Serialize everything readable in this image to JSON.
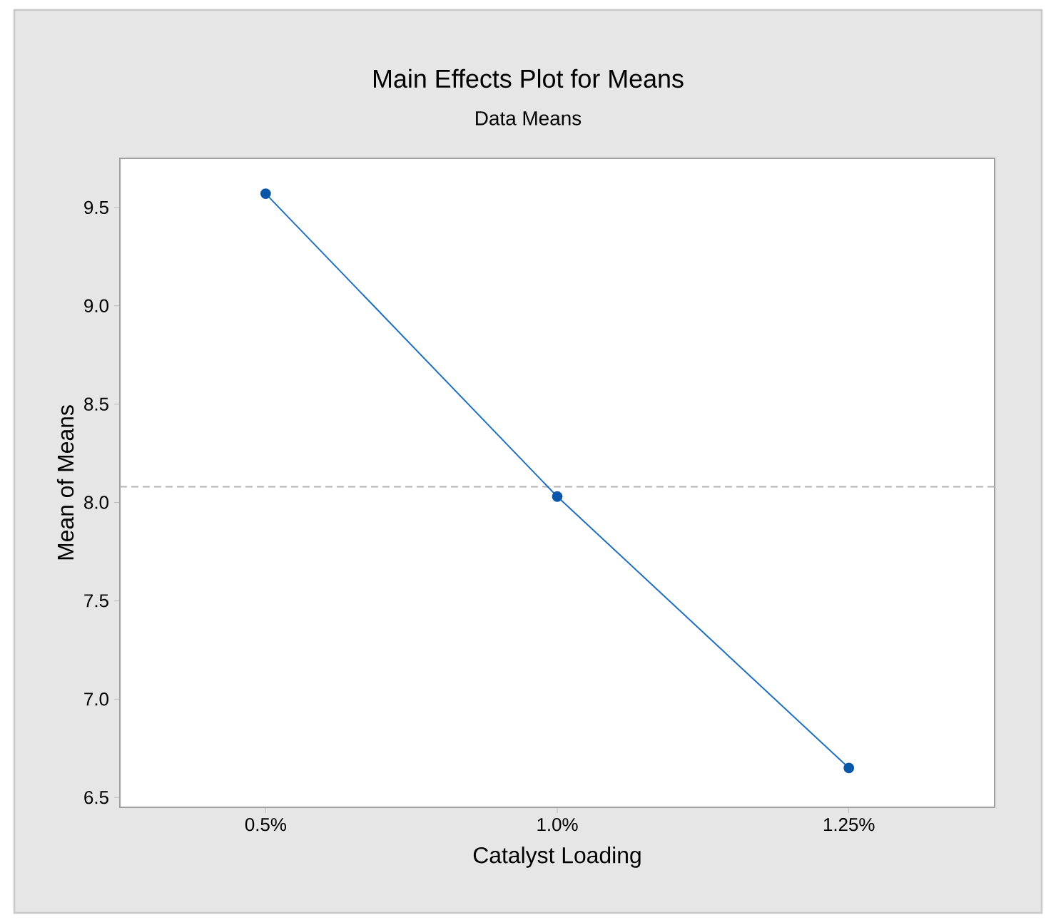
{
  "chart_data": {
    "type": "line",
    "title": "Main Effects Plot for Means",
    "subtitle": "Data Means",
    "xlabel": "Catalyst Loading",
    "ylabel": "Mean of Means",
    "categories": [
      "0.5%",
      "1.0%",
      "1.25%"
    ],
    "series": [
      {
        "color": "#1f6fc0",
        "values": [
          9.57,
          8.03,
          6.65
        ]
      }
    ],
    "ylim": [
      6.45,
      9.75
    ],
    "yticks": [
      {
        "value": 6.5,
        "label": "6.5"
      },
      {
        "value": 7,
        "label": "7.0"
      },
      {
        "value": 7.5,
        "label": "7.5"
      },
      {
        "value": 8,
        "label": "8.0"
      },
      {
        "value": 8.5,
        "label": "8.5"
      },
      {
        "value": 9,
        "label": "9.0"
      },
      {
        "value": 9.5,
        "label": "9.5"
      }
    ],
    "marker": "circle",
    "line_style": "solid",
    "ref_lines": [
      {
        "axis": "y",
        "value": 8.08,
        "color": "#b4b4b4",
        "line_style": "dashed"
      }
    ]
  }
}
